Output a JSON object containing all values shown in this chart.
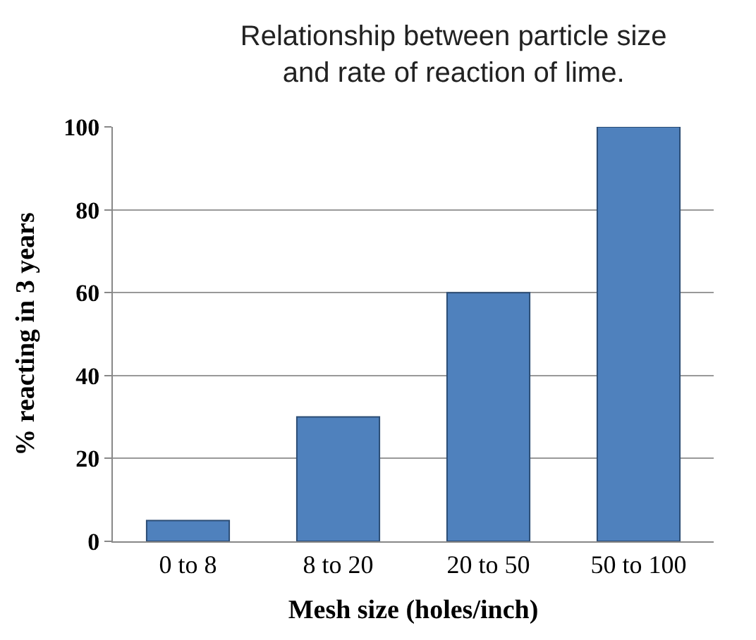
{
  "chart_data": {
    "type": "bar",
    "title": "Relationship between particle size\nand rate of reaction of lime.",
    "xlabel": "Mesh size (holes/inch)",
    "ylabel": "% reacting in 3 years",
    "categories": [
      "0 to 8",
      "8 to 20",
      "20 to 50",
      "50 to 100"
    ],
    "values": [
      5,
      30,
      60,
      100
    ],
    "color": "#4f81bd",
    "ylim": [
      0,
      100
    ],
    "yticks": [
      0,
      20,
      40,
      60,
      80,
      100
    ],
    "grid": "y"
  }
}
